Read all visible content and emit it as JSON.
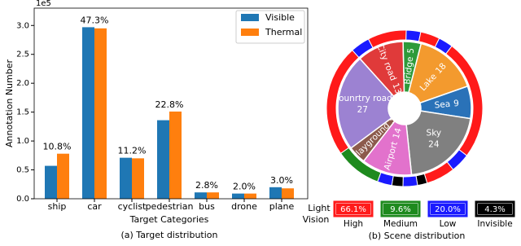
{
  "chart_data": [
    {
      "type": "bar",
      "y_label": "Annotation Number",
      "y_offset_label": "1e5",
      "x_label": "Target Categories",
      "caption": "(a) Target distribution",
      "categories": [
        "ship",
        "car",
        "cyclist",
        "pedestrian",
        "bus",
        "drone",
        "plane"
      ],
      "annotations": [
        "10.8%",
        "47.3%",
        "11.2%",
        "22.8%",
        "2.8%",
        "2.0%",
        "3.0%"
      ],
      "series": [
        {
          "name": "Visible",
          "color": "#1f77b4",
          "values": [
            0.57,
            2.97,
            0.71,
            1.36,
            0.11,
            0.09,
            0.2
          ]
        },
        {
          "name": "Thermal",
          "color": "#ff7f0e",
          "values": [
            0.78,
            2.95,
            0.7,
            1.51,
            0.11,
            0.09,
            0.18
          ]
        }
      ],
      "ylim": [
        0,
        3.3
      ],
      "yticks": [
        {
          "value": 0,
          "label": "0.0"
        },
        {
          "value": 0.5,
          "label": "0.5"
        },
        {
          "value": 1,
          "label": "1.0"
        },
        {
          "value": 1.5,
          "label": "1.5"
        },
        {
          "value": 2,
          "label": "2.0"
        },
        {
          "value": 2.5,
          "label": "2.5"
        },
        {
          "value": 3,
          "label": "3.0"
        }
      ],
      "legend": "upper right"
    },
    {
      "type": "sunburst",
      "caption": "(b) Scene distribution",
      "categories": [
        "City road",
        "Bridge",
        "Lake",
        "Sea",
        "Sky",
        "Airport",
        "Playground",
        "Counrtry road"
      ],
      "values": [
        13,
        5,
        18,
        9,
        24,
        14,
        5,
        27
      ],
      "colors": [
        "#e03a3a",
        "#2e9a3a",
        "#f39a2e",
        "#2a72b8",
        "#808080",
        "#e272cc",
        "#8c5a4c",
        "#9c82d2"
      ],
      "light": {
        "title": "Light",
        "subtitle": "Vision",
        "categories": [
          "High",
          "Medium",
          "Low",
          "Invisible"
        ],
        "colors": [
          "#ff1a1a",
          "#1e8a1e",
          "#1a1aff",
          "#000000"
        ],
        "values": [
          66.1,
          9.6,
          20.0,
          4.3
        ],
        "value_labels": [
          "66.1%",
          "9.6%",
          "20.0%",
          "4.3%"
        ]
      },
      "outer_ring": {
        "labels": [
          "Low",
          "High",
          "Low",
          "High",
          "Low",
          "High",
          "Low",
          "High",
          "Invisible",
          "Low",
          "Invisible",
          "Low",
          "Medium",
          "High"
        ],
        "values": [
          4,
          8,
          3,
          4,
          3,
          25,
          4,
          6,
          2,
          3,
          2.3,
          3,
          9.6,
          23.1
        ]
      }
    }
  ]
}
